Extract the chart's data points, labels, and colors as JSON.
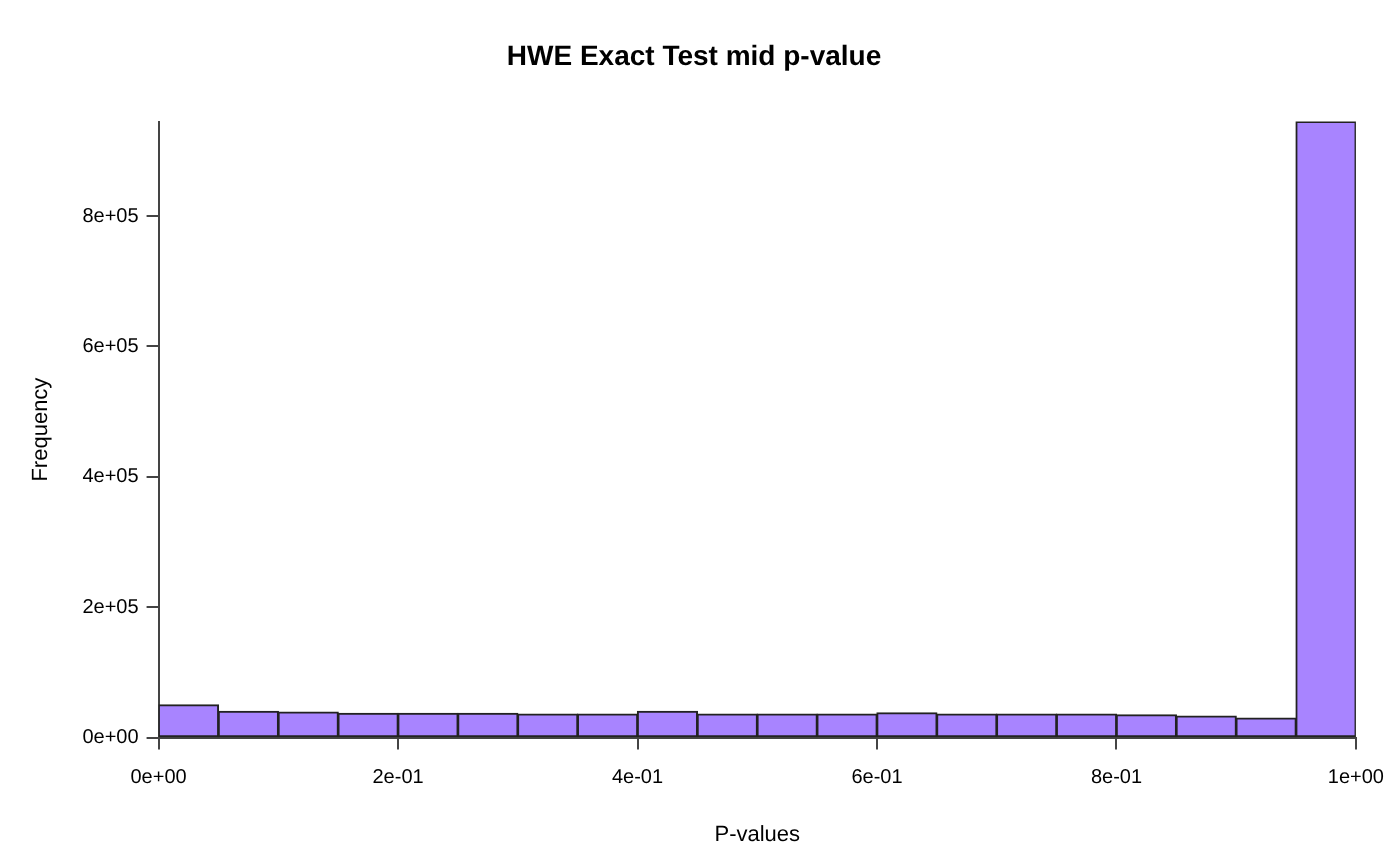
{
  "chart_data": {
    "type": "histogram",
    "title": "HWE Exact Test mid p-value",
    "xlabel": "P-values",
    "ylabel": "Frequency",
    "bins": [
      0,
      0.05,
      0.1,
      0.15,
      0.2,
      0.25,
      0.3,
      0.35,
      0.4,
      0.45,
      0.5,
      0.55,
      0.6,
      0.65,
      0.7,
      0.75,
      0.8,
      0.85,
      0.9,
      0.95,
      1
    ],
    "values": [
      50000,
      40000,
      39000,
      37000,
      37000,
      37000,
      36000,
      36000,
      40000,
      36000,
      36000,
      36000,
      38000,
      36000,
      36000,
      36000,
      35000,
      33000,
      30000,
      945000
    ],
    "color": "#a884ff",
    "xlim": [
      0,
      1
    ],
    "ylim": [
      0,
      945000
    ],
    "xticks": [
      {
        "value": 0,
        "label": "0e+00"
      },
      {
        "value": 0.2,
        "label": "2e-01"
      },
      {
        "value": 0.4,
        "label": "4e-01"
      },
      {
        "value": 0.6,
        "label": "6e-01"
      },
      {
        "value": 0.8,
        "label": "8e-01"
      },
      {
        "value": 1,
        "label": "1e+00"
      }
    ],
    "yticks": [
      {
        "value": 0,
        "label": "0e+00"
      },
      {
        "value": 200000,
        "label": "2e+05"
      },
      {
        "value": 400000,
        "label": "4e+05"
      },
      {
        "value": 600000,
        "label": "6e+05"
      },
      {
        "value": 800000,
        "label": "8e+05"
      }
    ],
    "grid": false,
    "legend": false
  }
}
